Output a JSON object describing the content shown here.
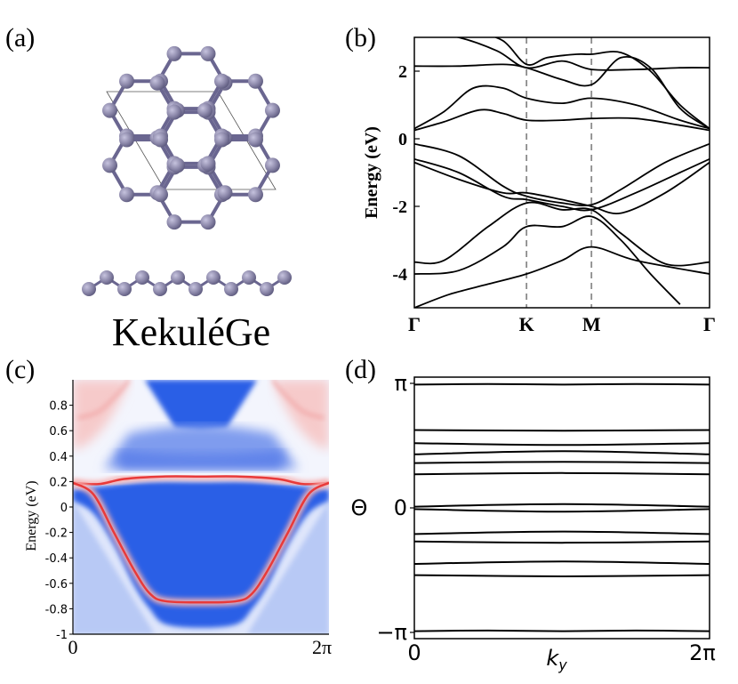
{
  "panels": {
    "a": "(a)",
    "b": "(b)",
    "c": "(c)",
    "d": "(d)"
  },
  "structure_label": "KekuléGe",
  "colors": {
    "atom": "#8a86a8",
    "bond": "#6a6690",
    "band_line": "#000000",
    "dash": "#8a8a8a",
    "bulk_blue": "#2a5ee6",
    "edge_red": "#e83a3a"
  },
  "chart_data": [
    {
      "type": "line",
      "panel": "b",
      "ylabel": "Energy (eV)",
      "ylim": [
        -5,
        3
      ],
      "yticks": [
        "2",
        "0",
        "-2",
        "-4"
      ],
      "yvalues": [
        2,
        0,
        -2,
        -4
      ],
      "k_labels": [
        "Γ",
        "K",
        "M",
        "Γ"
      ],
      "k_positions": [
        0,
        0.38,
        0.6,
        1.0
      ],
      "dashed_lines_at": [
        "K",
        "M"
      ],
      "bands": [
        [
          [
            0,
            -5
          ],
          [
            0.12,
            -4.6
          ],
          [
            0.25,
            -4.3
          ],
          [
            0.38,
            -4.0
          ],
          [
            0.5,
            -3.6
          ],
          [
            0.6,
            -3.2
          ],
          [
            0.75,
            -3.6
          ],
          [
            1,
            -4.0
          ]
        ],
        [
          [
            0,
            -4.0
          ],
          [
            0.15,
            -3.9
          ],
          [
            0.3,
            -3.2
          ],
          [
            0.38,
            -2.6
          ],
          [
            0.5,
            -2.6
          ],
          [
            0.6,
            -2.3
          ],
          [
            0.7,
            -3.0
          ],
          [
            0.8,
            -4.0
          ],
          [
            0.9,
            -4.9
          ]
        ],
        [
          [
            0,
            -3.65
          ],
          [
            0.1,
            -3.6
          ],
          [
            0.25,
            -2.6
          ],
          [
            0.38,
            -1.9
          ],
          [
            0.5,
            -2.1
          ],
          [
            0.6,
            -2.1
          ],
          [
            0.7,
            -2.8
          ],
          [
            0.85,
            -3.7
          ],
          [
            1,
            -3.65
          ]
        ],
        [
          [
            0,
            -0.6
          ],
          [
            0.15,
            -1.0
          ],
          [
            0.3,
            -1.7
          ],
          [
            0.38,
            -1.8
          ],
          [
            0.5,
            -2.0
          ],
          [
            0.6,
            -2.1
          ],
          [
            0.75,
            -1.6
          ],
          [
            0.9,
            -1.0
          ],
          [
            1,
            -0.6
          ]
        ],
        [
          [
            0,
            -0.7
          ],
          [
            0.15,
            -1.2
          ],
          [
            0.3,
            -1.6
          ],
          [
            0.38,
            -1.6
          ],
          [
            0.5,
            -1.8
          ],
          [
            0.6,
            -2.0
          ],
          [
            0.7,
            -2.2
          ],
          [
            0.85,
            -1.6
          ],
          [
            1,
            -0.7
          ]
        ],
        [
          [
            0,
            -0.15
          ],
          [
            0.15,
            -0.5
          ],
          [
            0.3,
            -1.4
          ],
          [
            0.38,
            -1.7
          ],
          [
            0.5,
            -1.9
          ],
          [
            0.6,
            -1.95
          ],
          [
            0.7,
            -1.5
          ],
          [
            0.85,
            -0.7
          ],
          [
            1,
            -0.15
          ]
        ],
        [
          [
            0,
            0.25
          ],
          [
            0.1,
            0.5
          ],
          [
            0.22,
            0.85
          ],
          [
            0.3,
            0.75
          ],
          [
            0.38,
            0.55
          ],
          [
            0.5,
            0.55
          ],
          [
            0.6,
            0.6
          ],
          [
            0.75,
            0.6
          ],
          [
            0.9,
            0.4
          ],
          [
            1,
            0.25
          ]
        ],
        [
          [
            0,
            0.3
          ],
          [
            0.1,
            0.8
          ],
          [
            0.2,
            1.5
          ],
          [
            0.3,
            1.5
          ],
          [
            0.38,
            1.2
          ],
          [
            0.5,
            1.05
          ],
          [
            0.6,
            1.2
          ],
          [
            0.75,
            1.0
          ],
          [
            0.9,
            0.55
          ],
          [
            1,
            0.3
          ]
        ],
        [
          [
            0,
            2.15
          ],
          [
            0.15,
            2.15
          ],
          [
            0.3,
            2.2
          ],
          [
            0.38,
            2.1
          ],
          [
            0.5,
            1.75
          ],
          [
            0.6,
            1.6
          ],
          [
            0.7,
            2.4
          ],
          [
            0.8,
            2.1
          ],
          [
            0.9,
            0.9
          ],
          [
            1,
            0.3
          ]
        ],
        [
          [
            0,
            3.2
          ],
          [
            0.15,
            3.0
          ],
          [
            0.28,
            2.6
          ],
          [
            0.38,
            2.1
          ],
          [
            0.5,
            2.3
          ],
          [
            0.6,
            2.05
          ],
          [
            0.75,
            2.05
          ],
          [
            0.9,
            2.1
          ],
          [
            1,
            2.1
          ]
        ],
        [
          [
            0.2,
            3.2
          ],
          [
            0.3,
            2.9
          ],
          [
            0.38,
            2.2
          ],
          [
            0.45,
            2.4
          ],
          [
            0.55,
            2.5
          ],
          [
            0.6,
            2.5
          ],
          [
            0.7,
            2.55
          ],
          [
            0.8,
            2.0
          ],
          [
            0.9,
            1.0
          ],
          [
            1,
            0.3
          ]
        ]
      ]
    },
    {
      "type": "heatmap",
      "panel": "c",
      "ylabel": "Energy (eV)",
      "ylim": [
        -1,
        1
      ],
      "yticks": [
        "0.8",
        "0.6",
        "0.4",
        "0.2",
        "0",
        "-0.2",
        "-0.4",
        "-0.6",
        "-0.8",
        "-1"
      ],
      "yvalues": [
        0.8,
        0.6,
        0.4,
        0.2,
        0,
        -0.2,
        -0.4,
        -0.6,
        -0.8,
        -1
      ],
      "xticks": [
        "0",
        "2π"
      ],
      "xlim": [
        0,
        1
      ],
      "edge_states": [
        [
          [
            0,
            0.19
          ],
          [
            0.1,
            0.18
          ],
          [
            0.2,
            0.22
          ],
          [
            0.35,
            0.24
          ],
          [
            0.5,
            0.24
          ],
          [
            0.65,
            0.24
          ],
          [
            0.8,
            0.22
          ],
          [
            0.9,
            0.18
          ],
          [
            1,
            0.19
          ]
        ],
        [
          [
            0,
            0.19
          ],
          [
            0.08,
            0.1
          ],
          [
            0.16,
            -0.2
          ],
          [
            0.24,
            -0.5
          ],
          [
            0.3,
            -0.68
          ],
          [
            0.36,
            -0.74
          ],
          [
            0.5,
            -0.75
          ],
          [
            0.64,
            -0.74
          ],
          [
            0.7,
            -0.68
          ],
          [
            0.76,
            -0.5
          ],
          [
            0.84,
            -0.2
          ],
          [
            0.92,
            0.1
          ],
          [
            1,
            0.19
          ]
        ]
      ]
    },
    {
      "type": "line",
      "panel": "d",
      "ylabel": "Θ",
      "xlabel": "ky",
      "yticks": [
        "π",
        "0",
        "−π"
      ],
      "yvalues": [
        1,
        0,
        -1
      ],
      "xticks": [
        "0",
        "2π"
      ],
      "ylim": [
        -1.05,
        1.05
      ],
      "wcc_lines": [
        [
          [
            0,
            0.99
          ],
          [
            0.25,
            0.995
          ],
          [
            0.5,
            0.99
          ],
          [
            0.75,
            0.995
          ],
          [
            1,
            0.99
          ]
        ],
        [
          [
            0,
            0.625
          ],
          [
            0.5,
            0.62
          ],
          [
            1,
            0.625
          ]
        ],
        [
          [
            0,
            0.52
          ],
          [
            0.5,
            0.505
          ],
          [
            1,
            0.52
          ]
        ],
        [
          [
            0,
            0.43
          ],
          [
            0.5,
            0.455
          ],
          [
            1,
            0.43
          ]
        ],
        [
          [
            0,
            0.36
          ],
          [
            0.5,
            0.37
          ],
          [
            1,
            0.36
          ]
        ],
        [
          [
            0,
            0.27
          ],
          [
            0.5,
            0.28
          ],
          [
            1,
            0.27
          ]
        ],
        [
          [
            0,
            0.01
          ],
          [
            0.5,
            0.03
          ],
          [
            1,
            0.01
          ]
        ],
        [
          [
            0,
            -0.01
          ],
          [
            0.5,
            -0.03
          ],
          [
            1,
            -0.01
          ]
        ],
        [
          [
            0,
            -0.21
          ],
          [
            0.5,
            -0.19
          ],
          [
            1,
            -0.21
          ]
        ],
        [
          [
            0,
            -0.27
          ],
          [
            0.5,
            -0.28
          ],
          [
            1,
            -0.27
          ]
        ],
        [
          [
            0,
            -0.45
          ],
          [
            0.5,
            -0.43
          ],
          [
            1,
            -0.45
          ]
        ],
        [
          [
            0,
            -0.54
          ],
          [
            0.5,
            -0.55
          ],
          [
            1,
            -0.54
          ]
        ],
        [
          [
            0,
            -0.99
          ],
          [
            0.25,
            -0.985
          ],
          [
            0.5,
            -0.99
          ],
          [
            0.75,
            -0.985
          ],
          [
            1,
            -0.99
          ]
        ]
      ]
    }
  ]
}
